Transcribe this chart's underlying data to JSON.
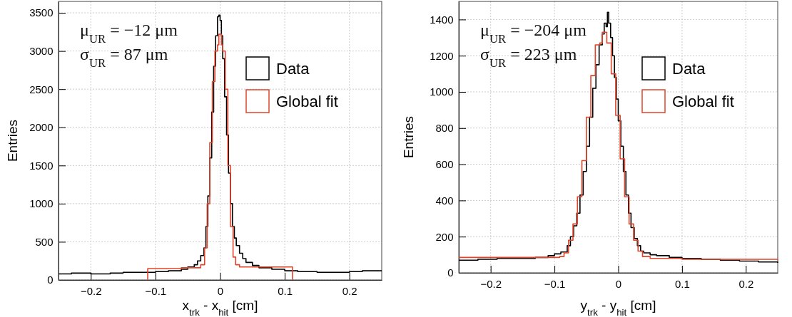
{
  "chart_data": [
    {
      "type": "step",
      "xlabel": "x$_{trk}$ - x$_{hit}$ [cm]",
      "ylabel": "Entries",
      "xlim": [
        -0.25,
        0.25
      ],
      "ylim": [
        0,
        3650
      ],
      "xticks": [
        -0.2,
        -0.1,
        0,
        0.1,
        0.2
      ],
      "yticks": [
        0,
        500,
        1000,
        1500,
        2000,
        2500,
        3000,
        3500
      ],
      "grid": true,
      "legend": "top right",
      "line_style": "solid",
      "marker": "none",
      "annotations": [
        "μ$_{UR}$ = −12 μm",
        "σ$_{UR}$ = 87 μm"
      ],
      "series": [
        {
          "name": "Data",
          "color": "#000000",
          "x": [
            -0.25,
            -0.23,
            -0.2,
            -0.17,
            -0.15,
            -0.12,
            -0.1,
            -0.08,
            -0.06,
            -0.05,
            -0.04,
            -0.035,
            -0.03,
            -0.025,
            -0.022,
            -0.019,
            -0.016,
            -0.013,
            -0.01,
            -0.007,
            -0.004,
            -0.002,
            0,
            0.002,
            0.004,
            0.007,
            0.01,
            0.013,
            0.016,
            0.019,
            0.022,
            0.025,
            0.03,
            0.035,
            0.04,
            0.05,
            0.06,
            0.08,
            0.1,
            0.12,
            0.15,
            0.18,
            0.2,
            0.22,
            0.25
          ],
          "values": [
            80,
            90,
            80,
            90,
            100,
            100,
            110,
            120,
            140,
            170,
            200,
            250,
            320,
            420,
            700,
            1100,
            1600,
            2200,
            2800,
            3200,
            3450,
            3470,
            3400,
            3200,
            2900,
            2400,
            1900,
            1400,
            1000,
            700,
            550,
            450,
            350,
            280,
            230,
            190,
            160,
            140,
            120,
            110,
            100,
            100,
            110,
            120,
            120
          ]
        },
        {
          "name": "Global fit",
          "color": "#e0452a",
          "x": [
            -0.112,
            -0.112,
            -0.06,
            -0.03,
            -0.024,
            -0.02,
            -0.016,
            -0.012,
            -0.008,
            -0.004,
            -0.002,
            0.002,
            0.004,
            0.008,
            0.012,
            0.016,
            0.02,
            0.024,
            0.03,
            0.112,
            0.112
          ],
          "values": [
            0,
            150,
            160,
            200,
            420,
            1000,
            1800,
            2600,
            3000,
            3080,
            3220,
            3080,
            3000,
            2500,
            1500,
            700,
            300,
            200,
            170,
            170,
            0
          ]
        }
      ]
    },
    {
      "type": "step",
      "xlabel": "y$_{trk}$ - y$_{hit}$ [cm]",
      "ylabel": "Entries",
      "xlim": [
        -0.25,
        0.25
      ],
      "ylim": [
        0,
        1500
      ],
      "xticks": [
        -0.2,
        -0.1,
        0,
        0.1,
        0.2
      ],
      "yticks": [
        0,
        200,
        400,
        600,
        800,
        1000,
        1200,
        1400
      ],
      "grid": true,
      "legend": "top right",
      "line_style": "solid",
      "marker": "none",
      "annotations": [
        "μ$_{UR}$ = −204 μm",
        "σ$_{UR}$ = 223 μm"
      ],
      "series": [
        {
          "name": "Data",
          "color": "#000000",
          "x": [
            -0.25,
            -0.22,
            -0.19,
            -0.16,
            -0.13,
            -0.11,
            -0.1,
            -0.09,
            -0.08,
            -0.075,
            -0.07,
            -0.065,
            -0.06,
            -0.055,
            -0.05,
            -0.045,
            -0.04,
            -0.035,
            -0.03,
            -0.025,
            -0.022,
            -0.019,
            -0.017,
            -0.015,
            -0.012,
            -0.009,
            -0.006,
            -0.003,
            0,
            0.004,
            0.008,
            0.012,
            0.016,
            0.02,
            0.025,
            0.03,
            0.035,
            0.04,
            0.05,
            0.06,
            0.08,
            0.1,
            0.13,
            0.16,
            0.19,
            0.22,
            0.25
          ],
          "values": [
            70,
            75,
            80,
            80,
            85,
            95,
            105,
            115,
            150,
            200,
            260,
            330,
            430,
            560,
            700,
            860,
            1020,
            1150,
            1260,
            1320,
            1380,
            1360,
            1440,
            1380,
            1300,
            1200,
            1080,
            960,
            840,
            700,
            560,
            430,
            330,
            250,
            190,
            150,
            120,
            110,
            100,
            95,
            85,
            80,
            75,
            70,
            65,
            60,
            55
          ]
        },
        {
          "name": "Global fit",
          "color": "#e0452a",
          "x": [
            -0.25,
            -0.1,
            -0.092,
            -0.085,
            -0.078,
            -0.071,
            -0.064,
            -0.057,
            -0.05,
            -0.043,
            -0.036,
            -0.029,
            -0.025,
            -0.018,
            -0.011,
            -0.004,
            0.003,
            0.01,
            0.017,
            0.024,
            0.031,
            0.038,
            0.05,
            0.1,
            0.25
          ],
          "values": [
            85,
            85,
            90,
            110,
            180,
            270,
            420,
            620,
            860,
            1090,
            1260,
            1270,
            1330,
            1270,
            1100,
            870,
            630,
            420,
            270,
            180,
            120,
            90,
            80,
            75,
            70
          ]
        }
      ]
    }
  ]
}
